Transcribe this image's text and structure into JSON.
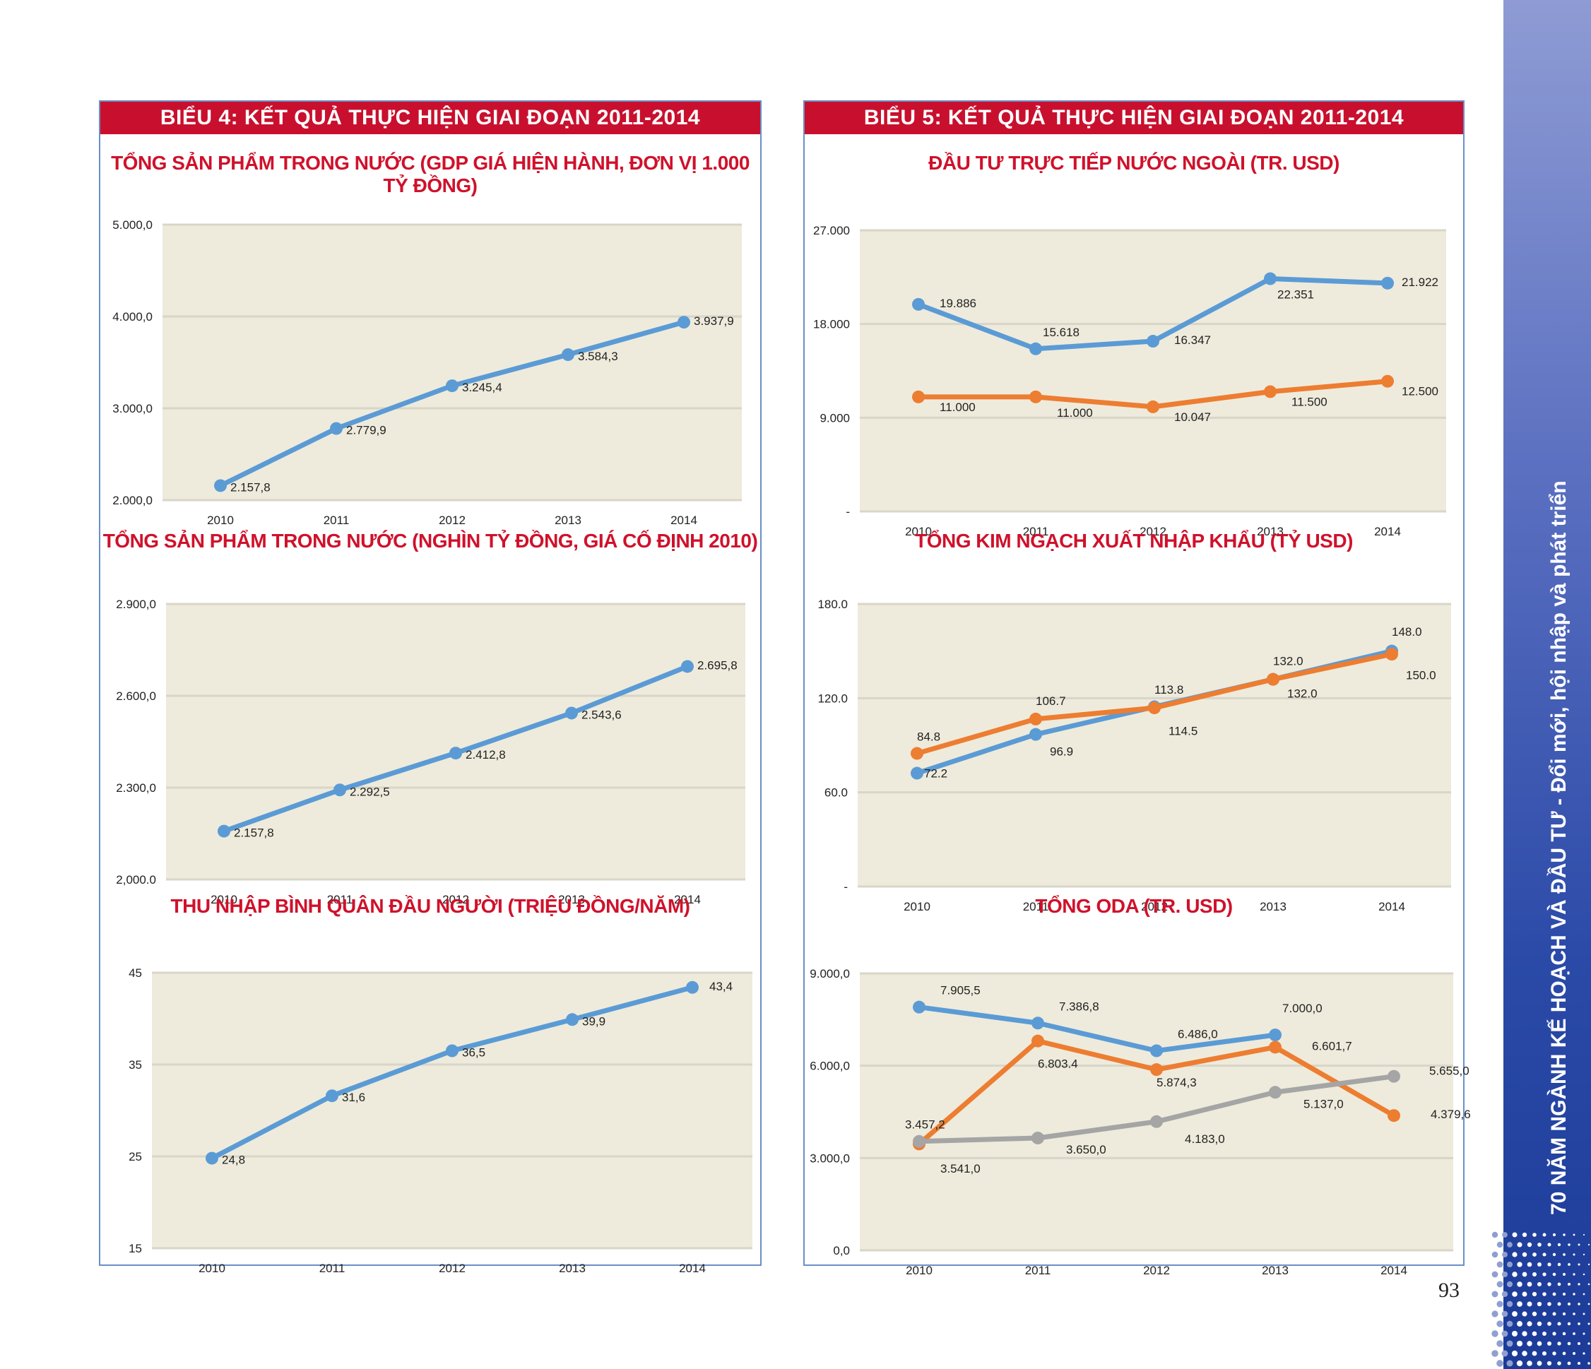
{
  "page": {
    "number": "93"
  },
  "colors": {
    "header": "#c8102e",
    "title": "#d0112b",
    "plot_bg": "#eeebdc",
    "grid": "#ffffff",
    "blue": "#5b9bd5",
    "orange": "#ed7d31",
    "gray": "#a5a5a5",
    "sidebar": "#2b4aa8"
  },
  "sidebar": {
    "text_bold": "70 NĂM NGÀNH KẾ HOẠCH VÀ ĐẦU TƯ",
    "text_rest": " - Đổi mới, hội nhập và phát triển"
  },
  "panels": [
    {
      "header": "BIỂU 4: KẾT QUẢ THỰC HIỆN GIAI ĐOẠN 2011-2014"
    },
    {
      "header": "BIỂU 5: KẾT QUẢ THỰC HIỆN GIAI ĐOẠN 2011-2014"
    }
  ],
  "chart_data": [
    {
      "type": "line",
      "title": "TỔNG SẢN PHẨM TRONG NƯỚC (GDP GIÁ HIỆN HÀNH, ĐƠN VỊ 1.000 TỶ ĐỒNG)",
      "categories": [
        "2010",
        "2011",
        "2012",
        "2013",
        "2014"
      ],
      "ylim": [
        2000,
        5000
      ],
      "yticks": [
        2000,
        3000,
        4000,
        5000
      ],
      "ytick_labels": [
        "2.000,0",
        "3.000,0",
        "4.000,0",
        "5.000,0"
      ],
      "series": [
        {
          "color": "blue",
          "values": [
            2157.8,
            2779.9,
            3245.4,
            3584.3,
            3937.9
          ],
          "labels": [
            "2.157,8",
            "2.779,9",
            "3.245,4",
            "3.584,3",
            "3.937,9"
          ]
        }
      ]
    },
    {
      "type": "line",
      "title": "TỔNG SẢN PHẨM TRONG NƯỚC (NGHÌN TỶ ĐỒNG, GIÁ CỐ ĐỊNH 2010)",
      "categories": [
        "2010",
        "2011",
        "2012",
        "2013",
        "2014"
      ],
      "ylim": [
        2000,
        2900
      ],
      "yticks": [
        2000,
        2300,
        2600,
        2900
      ],
      "ytick_labels": [
        "2,000.0",
        "2.300,0",
        "2.600,0",
        "2.900,0"
      ],
      "series": [
        {
          "color": "blue",
          "values": [
            2157.8,
            2292.5,
            2412.8,
            2543.6,
            2695.8
          ],
          "labels": [
            "2.157,8",
            "2.292,5",
            "2.412,8",
            "2.543,6",
            "2.695,8"
          ]
        }
      ]
    },
    {
      "type": "line",
      "title": "THU NHẬP BÌNH QUÂN ĐẦU NGƯỜI (TRIỆU ĐỒNG/NĂM)",
      "categories": [
        "2010",
        "2011",
        "2012",
        "2013",
        "2014"
      ],
      "ylim": [
        15,
        45
      ],
      "yticks": [
        15,
        25,
        35,
        45
      ],
      "ytick_labels": [
        "15",
        "25",
        "35",
        "45"
      ],
      "series": [
        {
          "color": "blue",
          "values": [
            24.8,
            31.6,
            36.5,
            39.9,
            43.4
          ],
          "labels": [
            "24,8",
            "31,6",
            "36,5",
            "39,9",
            "43,4"
          ]
        }
      ]
    },
    {
      "type": "line",
      "title": "ĐẦU TƯ TRỰC TIẾP NƯỚC NGOÀI (TR. USD)",
      "categories": [
        "2010",
        "2011",
        "2012",
        "2013",
        "2014"
      ],
      "ylim": [
        0,
        27000
      ],
      "yticks": [
        0,
        9000,
        18000,
        27000
      ],
      "ytick_labels": [
        "-",
        "9.000",
        "18.000",
        "27.000"
      ],
      "series": [
        {
          "color": "blue",
          "values": [
            19886,
            15618,
            16347,
            22351,
            21922
          ],
          "labels": [
            "19.886",
            "15.618",
            "16.347",
            "22.351",
            "21.922"
          ]
        },
        {
          "color": "orange",
          "values": [
            11000,
            11000,
            10047,
            11500,
            12500
          ],
          "labels": [
            "11.000",
            "11.000",
            "10.047",
            "11.500",
            "12.500"
          ]
        }
      ]
    },
    {
      "type": "line",
      "title": "TỔNG KIM NGẠCH XUẤT NHẬP KHẨU (TỶ USD)",
      "categories": [
        "2010",
        "2011",
        "2012",
        "2013",
        "2014"
      ],
      "ylim": [
        0,
        180
      ],
      "yticks": [
        0,
        60,
        120,
        180
      ],
      "ytick_labels": [
        "-",
        "60.0",
        "120.0",
        "180.0"
      ],
      "series": [
        {
          "color": "blue",
          "values": [
            72.2,
            96.9,
            114.5,
            132.0,
            150.0
          ],
          "labels": [
            "72.2",
            "96.9",
            "114.5",
            "132.0",
            "150.0"
          ]
        },
        {
          "color": "orange",
          "values": [
            84.8,
            106.7,
            113.8,
            132.0,
            148.0
          ],
          "labels": [
            "84.8",
            "106.7",
            "113.8",
            "132.0",
            "148.0"
          ]
        }
      ]
    },
    {
      "type": "line",
      "title": "TỔNG ODA (TR. USD)",
      "categories": [
        "2010",
        "2011",
        "2012",
        "2013",
        "2014"
      ],
      "ylim": [
        0,
        9000
      ],
      "yticks": [
        0,
        3000,
        6000,
        9000
      ],
      "ytick_labels": [
        "0,0",
        "3.000,0",
        "6.000,0",
        "9.000,0"
      ],
      "series": [
        {
          "color": "blue",
          "values": [
            7905.5,
            7386.8,
            6486.0,
            7000.0,
            null
          ],
          "labels": [
            "7.905,5",
            "7.386,8",
            "6.486,0",
            "7.000,0",
            ""
          ]
        },
        {
          "color": "orange",
          "values": [
            3457.2,
            6803.4,
            5874.3,
            6601.7,
            4379.6
          ],
          "labels": [
            "3.457,2",
            "6.803.4",
            "5.874,3",
            "6.601,7",
            "4.379,6"
          ]
        },
        {
          "color": "gray",
          "values": [
            3541.0,
            3650.0,
            4183.0,
            5137.0,
            5655.0
          ],
          "labels": [
            "3.541,0",
            "3.650,0",
            "4.183,0",
            "5.137,0",
            "5.655,0"
          ]
        }
      ]
    }
  ]
}
